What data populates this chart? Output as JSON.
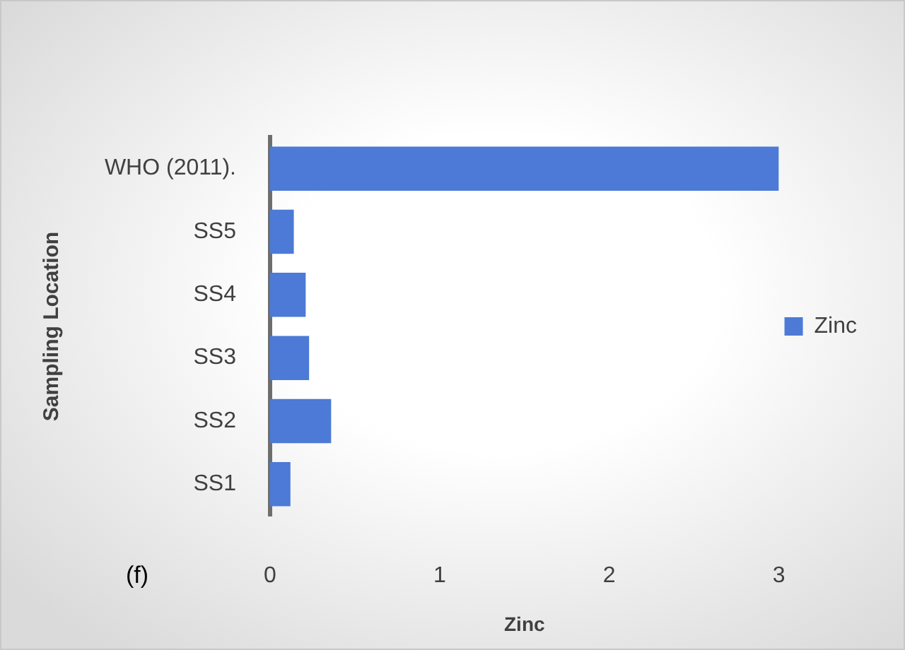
{
  "chart_data": {
    "type": "bar",
    "orientation": "horizontal",
    "categories": [
      "WHO (2011).",
      "SS5",
      "SS4",
      "SS3",
      "SS2",
      "SS1"
    ],
    "series": [
      {
        "name": "Zinc",
        "color": "#4c7ad6",
        "values": [
          3,
          0.14,
          0.21,
          0.23,
          0.36,
          0.12
        ]
      }
    ],
    "xlabel": "Zinc",
    "ylabel": "Sampling Location",
    "xlim": [
      0,
      3
    ],
    "xticks": [
      0,
      1,
      2,
      3
    ],
    "legend": "right",
    "annotations": [
      "(f)"
    ]
  }
}
